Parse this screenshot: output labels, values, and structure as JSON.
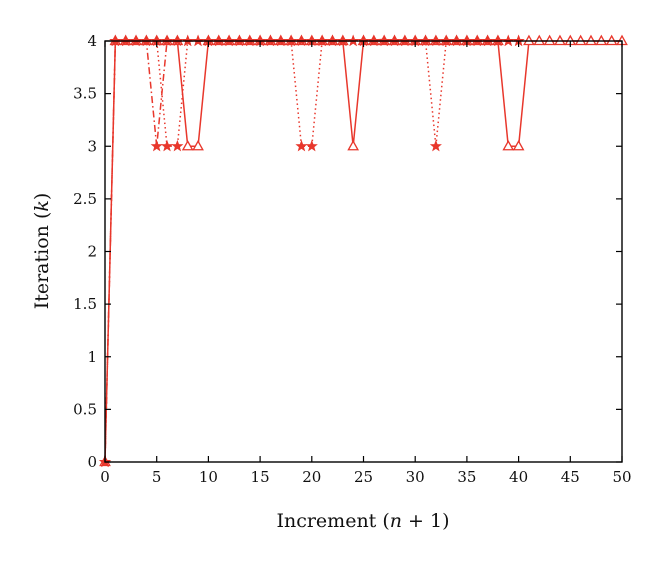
{
  "chart_data": {
    "type": "line",
    "title": "",
    "xlabel": "Increment (n + 1)",
    "xlabel_parts": [
      "Increment (",
      "n",
      " + 1)"
    ],
    "ylabel": "Iteration (k)",
    "ylabel_parts": [
      "Iteration (",
      "k",
      ")"
    ],
    "xlim": [
      0,
      50
    ],
    "ylim": [
      0,
      4
    ],
    "xticks": [
      "0",
      "5",
      "10",
      "15",
      "20",
      "25",
      "30",
      "35",
      "40",
      "45",
      "50"
    ],
    "yticks": [
      "0",
      "0.5",
      "1",
      "1.5",
      "2",
      "2.5",
      "3",
      "3.5",
      "4"
    ],
    "grid": false,
    "legend": "none",
    "color": "#e8372c",
    "series": [
      {
        "marker": "triangle",
        "line_style": "solid",
        "x": [
          0,
          1,
          2,
          3,
          4,
          5,
          6,
          7,
          8,
          9,
          10,
          11,
          12,
          13,
          14,
          15,
          16,
          17,
          18,
          19,
          20,
          21,
          22,
          23,
          24,
          25,
          26,
          27,
          28,
          29,
          30,
          31,
          32,
          33,
          34,
          35,
          36,
          37,
          38,
          39,
          40,
          41,
          42,
          43,
          44,
          45,
          46,
          47,
          48,
          49,
          50
        ],
        "y": [
          0,
          4,
          4,
          4,
          4,
          4,
          4,
          4,
          3,
          3,
          4,
          4,
          4,
          4,
          4,
          4,
          4,
          4,
          4,
          4,
          4,
          4,
          4,
          4,
          3,
          4,
          4,
          4,
          4,
          4,
          4,
          4,
          4,
          4,
          4,
          4,
          4,
          4,
          4,
          3,
          3,
          4,
          4,
          4,
          4,
          4,
          4,
          4,
          4,
          4,
          4
        ]
      },
      {
        "marker": "star",
        "line_style": "dotted",
        "x": [
          0,
          1,
          2,
          3,
          4,
          5,
          6,
          7,
          8,
          9,
          10,
          11,
          12,
          13,
          14,
          15,
          16,
          17,
          18,
          19,
          20,
          21,
          22,
          23,
          24,
          25,
          26,
          27,
          28,
          29,
          30,
          31,
          32,
          33,
          34,
          35,
          36,
          37,
          38,
          39,
          40
        ],
        "y": [
          0,
          4,
          4,
          4,
          4,
          4,
          3,
          3,
          4,
          4,
          4,
          4,
          4,
          4,
          4,
          4,
          4,
          4,
          4,
          3,
          3,
          4,
          4,
          4,
          4,
          4,
          4,
          4,
          4,
          4,
          4,
          4,
          3,
          4,
          4,
          4,
          4,
          4,
          4,
          4,
          4
        ]
      },
      {
        "marker": "star",
        "line_style": "dashdot",
        "x": [
          0,
          1,
          2,
          3,
          4,
          5,
          6,
          7,
          8,
          9,
          10,
          11,
          12,
          13,
          14,
          15,
          16,
          17,
          18,
          19,
          20,
          21,
          22,
          23,
          24,
          25,
          26,
          27,
          28,
          29,
          30,
          31,
          32,
          33,
          34,
          35,
          36,
          37,
          38,
          39,
          40
        ],
        "y": [
          0,
          4,
          4,
          4,
          4,
          3,
          4,
          4,
          4,
          4,
          4,
          4,
          4,
          4,
          4,
          4,
          4,
          4,
          4,
          4,
          4,
          4,
          4,
          4,
          4,
          4,
          4,
          4,
          4,
          4,
          4,
          4,
          4,
          4,
          4,
          4,
          4,
          4,
          4,
          4,
          4
        ]
      }
    ]
  }
}
